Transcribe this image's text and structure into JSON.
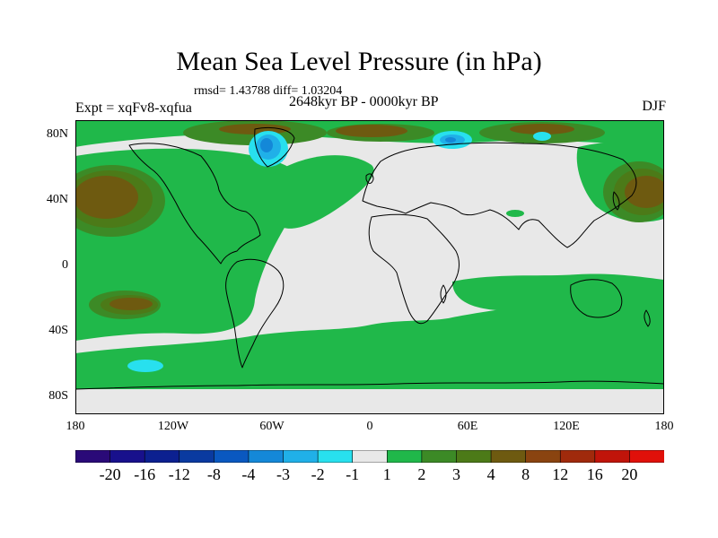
{
  "title": "Mean Sea Level Pressure (in hPa)",
  "stats": "rmsd= 1.43788 diff= 1.03204",
  "experiment": "Expt = xqFv8-xqfua",
  "period": "2648kyr BP - 0000kyr BP",
  "season": "DJF",
  "lat_labels": [
    "80N",
    "40N",
    "0",
    "40S",
    "80S"
  ],
  "lon_labels": [
    "180",
    "120W",
    "60W",
    "0",
    "60E",
    "120E",
    "180"
  ],
  "colorbar": {
    "labels": [
      "-20",
      "-16",
      "-12",
      "-8",
      "-4",
      "-3",
      "-2",
      "-1",
      "1",
      "2",
      "3",
      "4",
      "8",
      "12",
      "16",
      "20"
    ],
    "colors": [
      "#2a0a78",
      "#18108c",
      "#0c2090",
      "#0a3aa0",
      "#0a58c0",
      "#1488d8",
      "#20b0e8",
      "#28e0ee",
      "#e8e8e8",
      "#20b84a",
      "#3c8a26",
      "#4c7a18",
      "#6e5a10",
      "#8a4410",
      "#a02a0c",
      "#c0140a",
      "#e0100a"
    ]
  },
  "field_colors": {
    "neutral": "#e8e8e8",
    "plus1_2": "#20b84a",
    "plus2_3": "#3c8a26",
    "plus3_4": "#4c7a18",
    "plus4_8": "#6e5a10",
    "minus1_2": "#28e0ee",
    "minus2_3": "#20b0e8",
    "minus3_4": "#1488d8"
  }
}
